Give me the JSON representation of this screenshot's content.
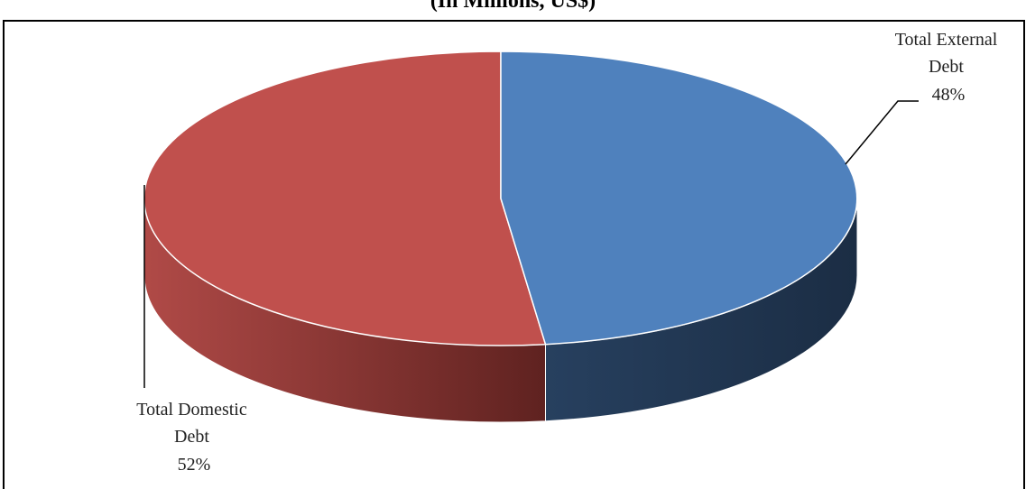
{
  "chart_data": {
    "type": "pie",
    "title": "(In Millions, US$)",
    "slices": [
      {
        "label": "Total External Debt",
        "percent_label": "48%",
        "value": 48,
        "color": "#4f81bd"
      },
      {
        "label": "Total Domestic Debt",
        "percent_label": "52%",
        "value": 52,
        "color": "#c0504d"
      }
    ],
    "label_lines": {
      "external": [
        "Total External",
        "Debt",
        "48%"
      ],
      "domestic": [
        "Total Domestic",
        "Debt",
        "52%"
      ]
    },
    "style": "3d"
  }
}
